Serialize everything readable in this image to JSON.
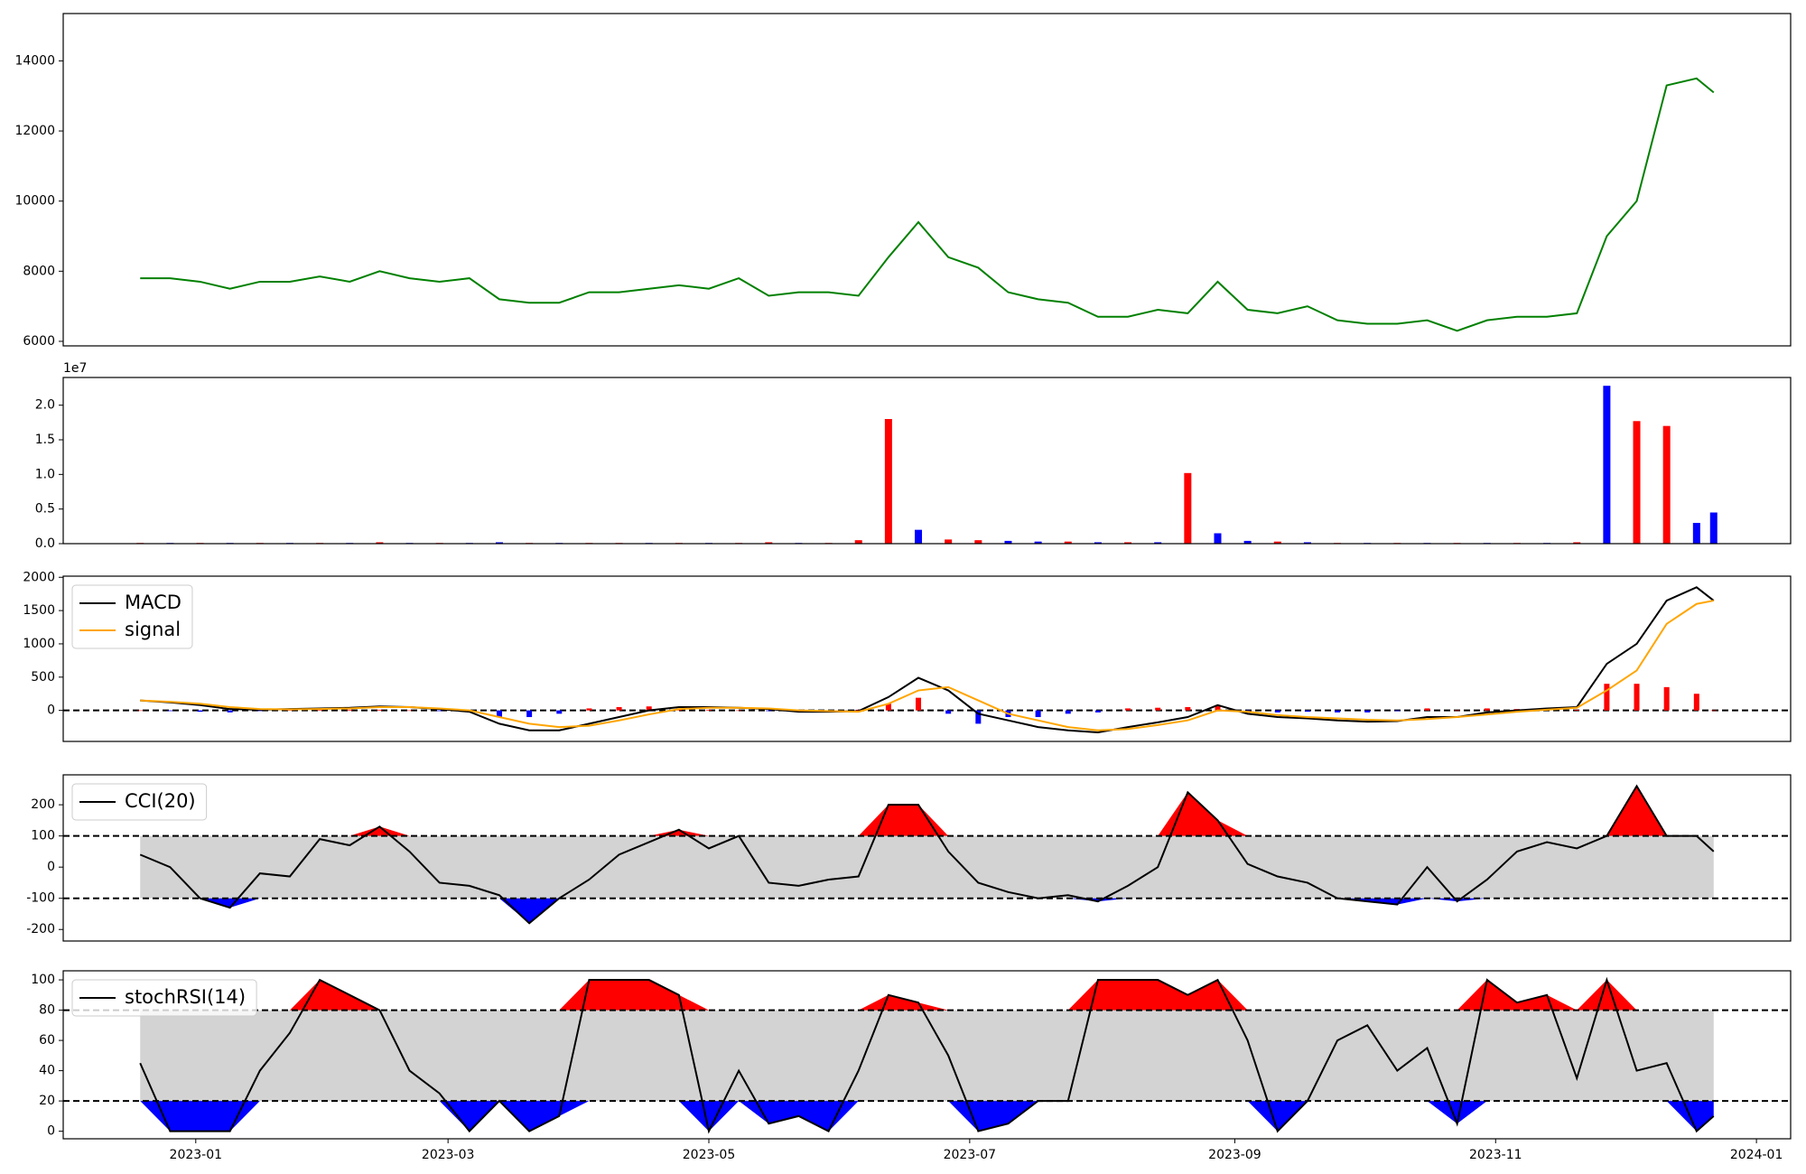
{
  "chart_data": [
    {
      "type": "line",
      "x": [
        19345,
        19352,
        19359,
        19366,
        19373,
        19380,
        19387,
        19394,
        19401,
        19408,
        19415,
        19422,
        19429,
        19436,
        19443,
        19450,
        19457,
        19464,
        19471,
        19478,
        19485,
        19492,
        19499,
        19506,
        19513,
        19520,
        19527,
        19534,
        19541,
        19548,
        19555,
        19562,
        19569,
        19576,
        19583,
        19590,
        19597,
        19604,
        19611,
        19618,
        19625,
        19632,
        19639,
        19646,
        19653,
        19660,
        19667,
        19674,
        19681,
        19688,
        19695,
        19702,
        19709,
        19713
      ],
      "series": [
        {
          "color": "#008000",
          "values": [
            7800,
            7800,
            7700,
            7500,
            7700,
            7700,
            7850,
            7700,
            8000,
            7800,
            7700,
            7800,
            7200,
            7100,
            7100,
            7400,
            7400,
            7500,
            7600,
            7500,
            7800,
            7300,
            7400,
            7400,
            7300,
            8400,
            9400,
            8400,
            8100,
            7400,
            7200,
            7100,
            6700,
            6700,
            6900,
            6800,
            7700,
            6900,
            6800,
            7000,
            6600,
            6500,
            6500,
            6600,
            6300,
            6600,
            6700,
            6700,
            6800,
            9000,
            10000,
            13300,
            13500,
            13100
          ]
        }
      ],
      "xlim": [
        19327,
        19731
      ],
      "ylim": [
        5870,
        15350
      ],
      "yticks": [
        6000,
        8000,
        10000,
        12000,
        14000
      ]
    },
    {
      "type": "bar",
      "x": [
        19345,
        19352,
        19359,
        19366,
        19373,
        19380,
        19387,
        19394,
        19401,
        19408,
        19415,
        19422,
        19429,
        19436,
        19443,
        19450,
        19457,
        19464,
        19471,
        19478,
        19485,
        19492,
        19499,
        19506,
        19513,
        19520,
        19527,
        19534,
        19541,
        19548,
        19555,
        19562,
        19569,
        19576,
        19583,
        19590,
        19597,
        19604,
        19611,
        19618,
        19625,
        19632,
        19639,
        19646,
        19653,
        19660,
        19667,
        19674,
        19681,
        19688,
        19695,
        19702,
        19709,
        19713
      ],
      "values": [
        0.01,
        0.01,
        0.01,
        0.01,
        0.01,
        0.01,
        0.01,
        0.01,
        0.02,
        0.01,
        0.01,
        0.01,
        0.02,
        0.01,
        0.01,
        0.01,
        0.01,
        0.01,
        0.01,
        0.01,
        0.01,
        0.02,
        0.01,
        0.01,
        0.05,
        1.8,
        0.2,
        0.06,
        0.05,
        0.04,
        0.03,
        0.03,
        0.02,
        0.02,
        0.02,
        1.02,
        0.15,
        0.04,
        0.03,
        0.02,
        0.01,
        0.01,
        0.01,
        0.01,
        0.01,
        0.01,
        0.01,
        0.01,
        0.02,
        2.28,
        1.77,
        1.7,
        0.3,
        0.45
      ],
      "colors": [
        "#ff0000",
        "#0000ff",
        "#ff0000",
        "#0000ff",
        "#ff0000",
        "#0000ff",
        "#ff0000",
        "#0000ff",
        "#ff0000",
        "#0000ff",
        "#ff0000",
        "#0000ff",
        "#0000ff",
        "#ff0000",
        "#0000ff",
        "#ff0000",
        "#ff0000",
        "#0000ff",
        "#ff0000",
        "#0000ff",
        "#ff0000",
        "#ff0000",
        "#0000ff",
        "#ff0000",
        "#ff0000",
        "#ff0000",
        "#0000ff",
        "#ff0000",
        "#ff0000",
        "#0000ff",
        "#0000ff",
        "#ff0000",
        "#0000ff",
        "#ff0000",
        "#0000ff",
        "#ff0000",
        "#0000ff",
        "#0000ff",
        "#ff0000",
        "#0000ff",
        "#ff0000",
        "#0000ff",
        "#ff0000",
        "#0000ff",
        "#ff0000",
        "#0000ff",
        "#ff0000",
        "#0000ff",
        "#ff0000",
        "#0000ff",
        "#ff0000",
        "#ff0000",
        "#0000ff",
        "#0000ff"
      ],
      "y_offset_label": "1e7",
      "xlim": [
        19327,
        19731
      ],
      "ylim": [
        0,
        2.4
      ],
      "yticks": [
        {
          "value": 0,
          "label": "0.0"
        },
        {
          "value": 0.5,
          "label": "0.5"
        },
        {
          "value": 1,
          "label": "1.0"
        },
        {
          "value": 1.5,
          "label": "1.5"
        },
        {
          "value": 2,
          "label": "2.0"
        }
      ]
    },
    {
      "type": "line",
      "x": [
        19345,
        19352,
        19359,
        19366,
        19373,
        19380,
        19387,
        19394,
        19401,
        19408,
        19415,
        19422,
        19429,
        19436,
        19443,
        19450,
        19457,
        19464,
        19471,
        19478,
        19485,
        19492,
        19499,
        19506,
        19513,
        19520,
        19527,
        19534,
        19541,
        19548,
        19555,
        19562,
        19569,
        19576,
        19583,
        19590,
        19597,
        19604,
        19611,
        19618,
        19625,
        19632,
        19639,
        19646,
        19653,
        19660,
        19667,
        19674,
        19681,
        19688,
        19695,
        19702,
        19709,
        19713
      ],
      "series": [
        {
          "name": "MACD",
          "color": "#000000",
          "values": [
            150,
            120,
            80,
            20,
            10,
            20,
            30,
            40,
            60,
            50,
            20,
            -20,
            -200,
            -300,
            -300,
            -200,
            -100,
            0,
            50,
            50,
            40,
            20,
            -20,
            -20,
            -10,
            200,
            490,
            300,
            -50,
            -150,
            -250,
            -300,
            -330,
            -250,
            -180,
            -100,
            80,
            -50,
            -100,
            -120,
            -150,
            -170,
            -160,
            -100,
            -100,
            -30,
            0,
            30,
            50,
            700,
            1000,
            1650,
            1850,
            1650
          ]
        },
        {
          "name": "signal",
          "color": "#ffa500",
          "values": [
            150,
            130,
            100,
            50,
            20,
            15,
            20,
            30,
            50,
            50,
            30,
            0,
            -100,
            -200,
            -250,
            -230,
            -150,
            -60,
            20,
            40,
            40,
            30,
            0,
            -10,
            -20,
            100,
            300,
            350,
            150,
            -50,
            -150,
            -250,
            -300,
            -280,
            -220,
            -150,
            0,
            -20,
            -70,
            -100,
            -120,
            -140,
            -150,
            -130,
            -100,
            -60,
            -20,
            10,
            40,
            300,
            600,
            1300,
            1600,
            1650
          ]
        }
      ],
      "hist": [
        0,
        -10,
        -20,
        -30,
        -10,
        5,
        10,
        10,
        10,
        0,
        -10,
        -20,
        -100,
        -100,
        -50,
        30,
        50,
        60,
        30,
        10,
        0,
        -10,
        -20,
        -10,
        10,
        100,
        190,
        -50,
        -200,
        -100,
        -100,
        -50,
        -30,
        30,
        40,
        50,
        80,
        -30,
        -30,
        -20,
        -30,
        -30,
        -10,
        30,
        0,
        30,
        20,
        20,
        10,
        400,
        400,
        350,
        250,
        0
      ],
      "pos_color": "#ff0000",
      "neg_color": "#0000ff",
      "hline": 0,
      "legend": "upper left",
      "xlim": [
        19327,
        19731
      ],
      "ylim": [
        -466,
        2017
      ],
      "yticks": [
        0,
        500,
        1000,
        1500,
        2000
      ]
    },
    {
      "type": "line",
      "x": [
        19345,
        19352,
        19359,
        19366,
        19373,
        19380,
        19387,
        19394,
        19401,
        19408,
        19415,
        19422,
        19429,
        19436,
        19443,
        19450,
        19457,
        19464,
        19471,
        19478,
        19485,
        19492,
        19499,
        19506,
        19513,
        19520,
        19527,
        19534,
        19541,
        19548,
        19555,
        19562,
        19569,
        19576,
        19583,
        19590,
        19597,
        19604,
        19611,
        19618,
        19625,
        19632,
        19639,
        19646,
        19653,
        19660,
        19667,
        19674,
        19681,
        19688,
        19695,
        19702,
        19709,
        19713
      ],
      "series": [
        {
          "name": "CCI(20)",
          "color": "#000000",
          "values": [
            40,
            0,
            -100,
            -130,
            -20,
            -30,
            90,
            70,
            130,
            50,
            -50,
            -60,
            -90,
            -180,
            -100,
            -40,
            40,
            80,
            120,
            60,
            100,
            -50,
            -60,
            -40,
            -30,
            200,
            200,
            50,
            -50,
            -80,
            -100,
            -90,
            -110,
            -60,
            0,
            240,
            150,
            10,
            -30,
            -50,
            -100,
            -110,
            -120,
            0,
            -110,
            -40,
            50,
            80,
            60,
            100,
            260,
            100,
            100,
            50
          ]
        }
      ],
      "levels": [
        -100,
        100
      ],
      "band_color": "#d3d3d3",
      "pos_color": "#ff0000",
      "neg_color": "#0000ff",
      "legend": "upper left",
      "xlim": [
        19327,
        19731
      ],
      "ylim": [
        -237,
        296
      ],
      "yticks": [
        -200,
        -100,
        0,
        100,
        200
      ]
    },
    {
      "type": "line",
      "x": [
        19345,
        19352,
        19359,
        19366,
        19373,
        19380,
        19387,
        19394,
        19401,
        19408,
        19415,
        19422,
        19429,
        19436,
        19443,
        19450,
        19457,
        19464,
        19471,
        19478,
        19485,
        19492,
        19499,
        19506,
        19513,
        19520,
        19527,
        19534,
        19541,
        19548,
        19555,
        19562,
        19569,
        19576,
        19583,
        19590,
        19597,
        19604,
        19611,
        19618,
        19625,
        19632,
        19639,
        19646,
        19653,
        19660,
        19667,
        19674,
        19681,
        19688,
        19695,
        19702,
        19709,
        19713
      ],
      "series": [
        {
          "name": "stochRSI(14)",
          "color": "#000000",
          "values": [
            45,
            0,
            0,
            0,
            40,
            65,
            100,
            90,
            80,
            40,
            25,
            0,
            20,
            0,
            10,
            100,
            100,
            100,
            90,
            0,
            40,
            5,
            10,
            0,
            40,
            90,
            85,
            50,
            0,
            5,
            20,
            20,
            100,
            100,
            100,
            90,
            100,
            60,
            0,
            20,
            60,
            70,
            40,
            55,
            5,
            100,
            85,
            90,
            35,
            100,
            40,
            45,
            0,
            10
          ]
        }
      ],
      "levels": [
        20,
        80
      ],
      "band_color": "#d3d3d3",
      "pos_color": "#ff0000",
      "neg_color": "#0000ff",
      "legend": "upper left",
      "xlim": [
        19327,
        19731
      ],
      "ylim": [
        -5,
        106
      ],
      "yticks": [
        0,
        20,
        40,
        60,
        80,
        100
      ],
      "xticks": [
        {
          "value": 19358,
          "label": "2023-01"
        },
        {
          "value": 19417,
          "label": "2023-03"
        },
        {
          "value": 19478,
          "label": "2023-05"
        },
        {
          "value": 19539,
          "label": "2023-07"
        },
        {
          "value": 19601,
          "label": "2023-09"
        },
        {
          "value": 19662,
          "label": "2023-11"
        },
        {
          "value": 19723,
          "label": "2024-01"
        }
      ]
    }
  ]
}
